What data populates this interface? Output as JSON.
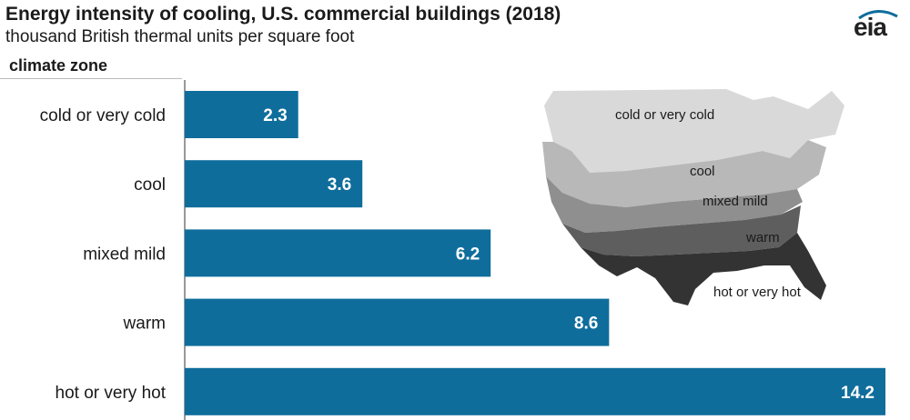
{
  "header": {
    "title": "Energy intensity of cooling, U.S. commercial buildings (2018)",
    "subtitle": "thousand British thermal units per square foot",
    "logo_text": "eia"
  },
  "colors": {
    "bar": "#0f6d9c",
    "bar_label": "#ffffff",
    "map_shades": [
      "#d9d9d9",
      "#b8b8b8",
      "#8f8f8f",
      "#5e5e5e",
      "#333333"
    ]
  },
  "map": {
    "zone_labels": [
      "cold or very cold",
      "cool",
      "mixed mild",
      "warm",
      "hot or very hot"
    ]
  },
  "chart_data": {
    "type": "bar",
    "orientation": "horizontal",
    "title": "Energy intensity of cooling, U.S. commercial buildings (2018)",
    "subtitle": "thousand British thermal units per square foot",
    "ylabel": "climate zone",
    "xlabel": "",
    "categories": [
      "cold or very cold",
      "cool",
      "mixed mild",
      "warm",
      "hot or very hot"
    ],
    "values": [
      2.3,
      3.6,
      6.2,
      8.6,
      14.2
    ],
    "xlim": [
      0,
      14.2
    ],
    "grid": false,
    "legend": "none"
  }
}
